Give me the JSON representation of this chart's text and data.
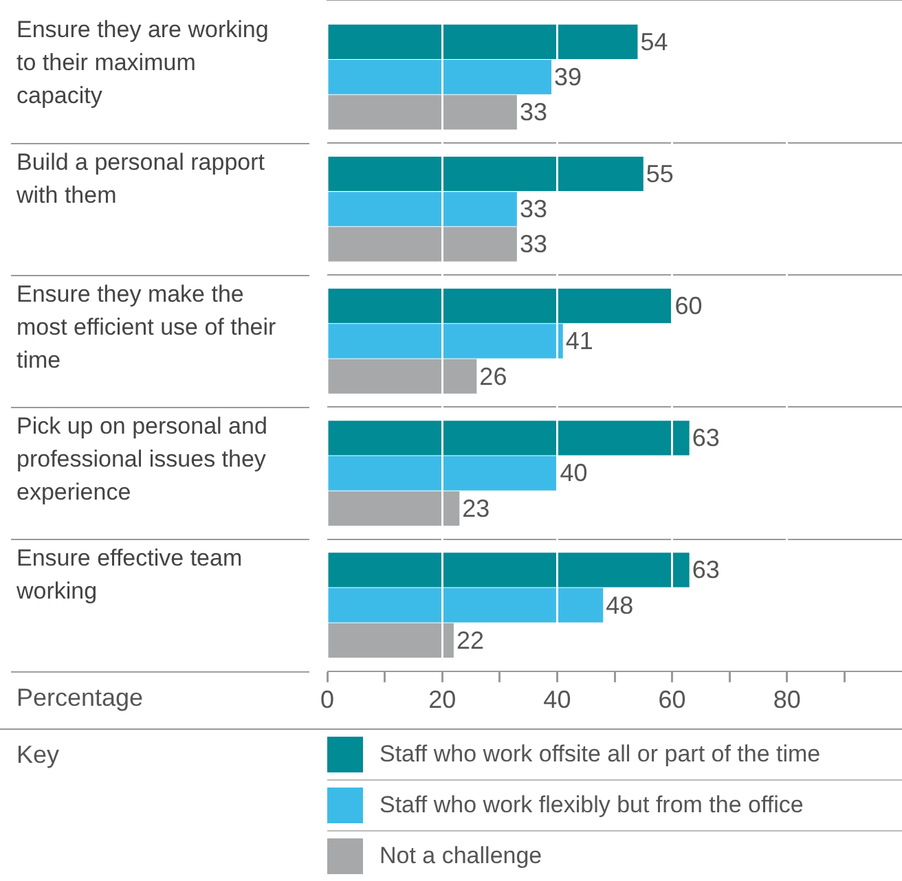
{
  "chart_data": {
    "type": "bar",
    "orientation": "horizontal",
    "categories": [
      "Ensure they are working to their maximum capacity",
      "Build a personal rapport with them",
      "Ensure they make the most efficient use of their time",
      "Pick up on personal and professional issues they experience",
      "Ensure effective team working"
    ],
    "series": [
      {
        "name": "Staff who work offsite all or part of the time",
        "color": "#008b95",
        "values": [
          54,
          55,
          60,
          63,
          63
        ]
      },
      {
        "name": "Staff who work flexibly but from the office",
        "color": "#3dbbe8",
        "values": [
          39,
          33,
          41,
          40,
          48
        ]
      },
      {
        "name": "Not a challenge",
        "color": "#a7a8aa",
        "values": [
          33,
          33,
          26,
          23,
          22
        ]
      }
    ],
    "xlabel": "Percentage",
    "legend_title": "Key",
    "legend": "bottom",
    "xlim": [
      0,
      100
    ],
    "xticks": [
      0,
      {
        "value": 10,
        "label": null
      },
      20,
      {
        "value": 30,
        "label": null
      },
      40,
      {
        "value": 50,
        "label": null
      },
      60,
      {
        "value": 70,
        "label": null
      },
      80,
      {
        "value": 90,
        "label": null
      }
    ],
    "grid": true,
    "data_labels": true
  }
}
